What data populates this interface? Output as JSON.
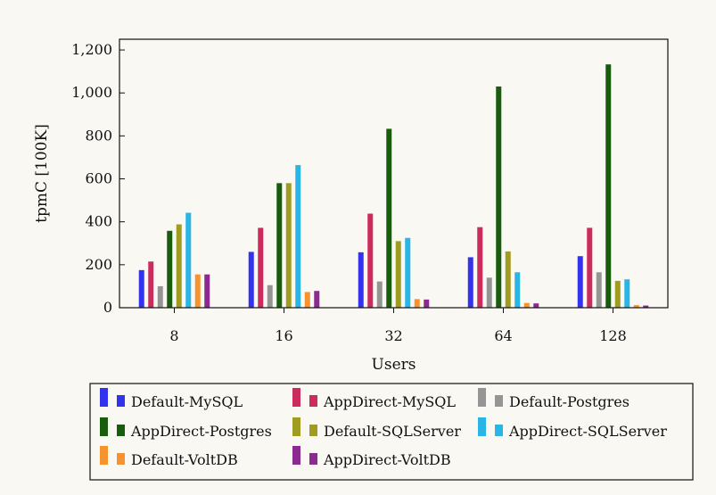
{
  "chart_data": {
    "type": "bar",
    "title": "",
    "xlabel": "Users",
    "ylabel": "tpmC [100K]",
    "categories": [
      "8",
      "16",
      "32",
      "64",
      "128"
    ],
    "ylim": [
      0,
      1250
    ],
    "yticks": [
      0,
      200,
      400,
      600,
      800,
      1000,
      1200
    ],
    "ytick_labels": [
      "0",
      "200",
      "400",
      "600",
      "800",
      "1,000",
      "1,200"
    ],
    "grid": false,
    "legend_position": "bottom",
    "legend_columns": 3,
    "series": [
      {
        "name": "Default-MySQL",
        "color": "#3333ee",
        "values": [
          175,
          260,
          258,
          235,
          240
        ]
      },
      {
        "name": "AppDirect-MySQL",
        "color": "#cc2b5e",
        "values": [
          215,
          372,
          438,
          375,
          372
        ]
      },
      {
        "name": "Default-Postgres",
        "color": "#959595",
        "values": [
          100,
          105,
          122,
          140,
          165
        ]
      },
      {
        "name": "AppDirect-Postgres",
        "color": "#1a5c0e",
        "values": [
          358,
          580,
          833,
          1030,
          1133
        ]
      },
      {
        "name": "Default-SQLServer",
        "color": "#a09b21",
        "values": [
          388,
          580,
          310,
          262,
          125
        ]
      },
      {
        "name": "AppDirect-SQLServer",
        "color": "#2bb5e6",
        "values": [
          442,
          664,
          325,
          165,
          132
        ]
      },
      {
        "name": "Default-VoltDB",
        "color": "#f5932e",
        "values": [
          155,
          73,
          40,
          22,
          12
        ]
      },
      {
        "name": "AppDirect-VoltDB",
        "color": "#8b2a8f",
        "values": [
          155,
          78,
          38,
          20,
          10
        ]
      }
    ]
  }
}
